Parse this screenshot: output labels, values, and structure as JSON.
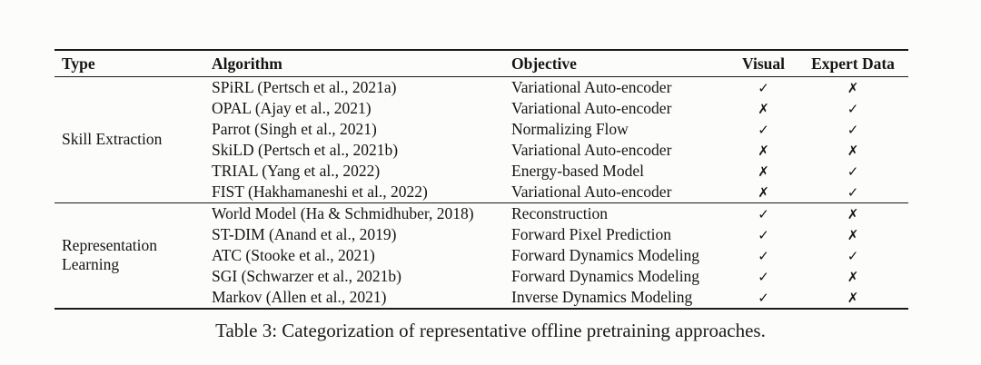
{
  "table": {
    "columns": [
      {
        "label": "Type"
      },
      {
        "label": "Algorithm"
      },
      {
        "label": "Objective"
      },
      {
        "label": "Visual"
      },
      {
        "label": "Expert Data"
      }
    ],
    "symbols": {
      "check": "✓",
      "cross": "✗"
    },
    "groups": [
      {
        "type": "Skill Extraction",
        "rows": [
          {
            "algorithm": "SPiRL (Pertsch et al., 2021a)",
            "objective": "Variational Auto-encoder",
            "visual": "check",
            "expert_data": "cross"
          },
          {
            "algorithm": "OPAL (Ajay et al., 2021)",
            "objective": "Variational Auto-encoder",
            "visual": "cross",
            "expert_data": "check"
          },
          {
            "algorithm": "Parrot (Singh et al., 2021)",
            "objective": "Normalizing Flow",
            "visual": "check",
            "expert_data": "check"
          },
          {
            "algorithm": "SkiLD (Pertsch et al., 2021b)",
            "objective": "Variational Auto-encoder",
            "visual": "cross",
            "expert_data": "cross"
          },
          {
            "algorithm": "TRIAL (Yang et al., 2022)",
            "objective": "Energy-based Model",
            "visual": "cross",
            "expert_data": "check"
          },
          {
            "algorithm": "FIST (Hakhamaneshi et al., 2022)",
            "objective": "Variational Auto-encoder",
            "visual": "cross",
            "expert_data": "check"
          }
        ]
      },
      {
        "type": "Representation Learning",
        "rows": [
          {
            "algorithm": "World Model (Ha & Schmidhuber, 2018)",
            "objective": "Reconstruction",
            "visual": "check",
            "expert_data": "cross"
          },
          {
            "algorithm": "ST-DIM (Anand et al., 2019)",
            "objective": "Forward Pixel Prediction",
            "visual": "check",
            "expert_data": "cross"
          },
          {
            "algorithm": "ATC (Stooke et al., 2021)",
            "objective": "Forward Dynamics Modeling",
            "visual": "check",
            "expert_data": "check"
          },
          {
            "algorithm": "SGI (Schwarzer et al., 2021b)",
            "objective": "Forward Dynamics Modeling",
            "visual": "check",
            "expert_data": "cross"
          },
          {
            "algorithm": "Markov (Allen et al., 2021)",
            "objective": "Inverse Dynamics Modeling",
            "visual": "check",
            "expert_data": "cross"
          }
        ]
      }
    ],
    "caption": "Table 3: Categorization of representative offline pretraining approaches."
  }
}
